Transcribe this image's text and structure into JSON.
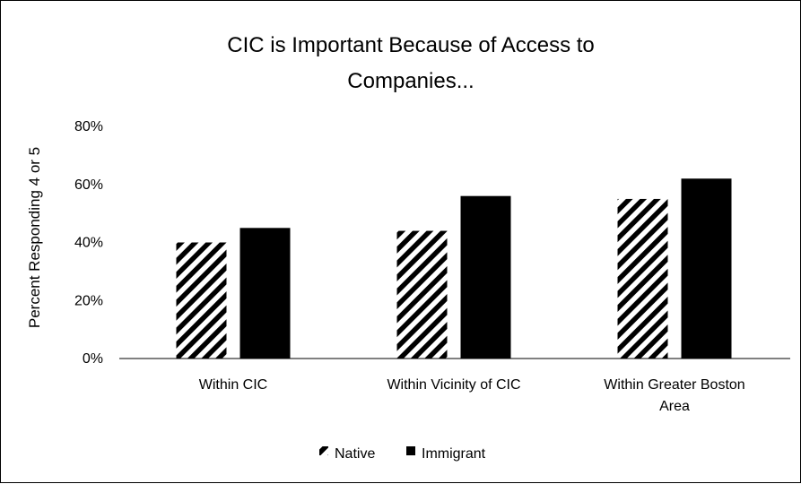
{
  "chart_data": {
    "type": "bar",
    "title_lines": [
      "CIC is Important Because of Access to",
      "Companies..."
    ],
    "ylabel": "Percent Responding 4 or 5",
    "xlabel": "",
    "ylim": [
      0,
      80
    ],
    "yticks": [
      0,
      20,
      40,
      60,
      80
    ],
    "ytick_labels": [
      "0%",
      "20%",
      "40%",
      "60%",
      "80%"
    ],
    "grid": false,
    "legend_position": "bottom",
    "categories": [
      [
        "Within CIC"
      ],
      [
        "Within Vicinity of CIC"
      ],
      [
        "Within Greater Boston",
        "Area"
      ]
    ],
    "series": [
      {
        "name": "Native",
        "pattern": "diagonal-stripes",
        "color": "#000000",
        "values": [
          40,
          44,
          55
        ]
      },
      {
        "name": "Immigrant",
        "pattern": "solid",
        "color": "#000000",
        "values": [
          45,
          56,
          62
        ]
      }
    ]
  }
}
